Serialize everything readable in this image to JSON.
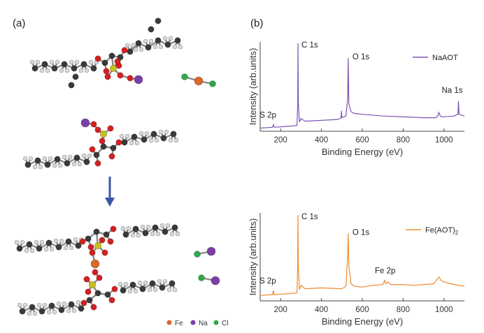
{
  "panels": {
    "a": "(a)",
    "b": "(b)"
  },
  "element_legend": [
    {
      "label": "Fe",
      "color": "#d9692a"
    },
    {
      "label": "Na",
      "color": "#7b3fa8"
    },
    {
      "label": "Cl",
      "color": "#2fa84a"
    }
  ],
  "atom_colors": {
    "C": "#3a3a3a",
    "H": "#d8d8d8",
    "O": "#d42020",
    "S": "#c8c020",
    "Fe": "#d9692a",
    "Na": "#7b3fa8",
    "Cl": "#2fa84a"
  },
  "arrow_color": "#3a55a8",
  "chart_data": [
    {
      "type": "line",
      "xlabel": "Binding Energy (eV)",
      "ylabel": "Intensity (arb.units)",
      "xlim": [
        100,
        1100
      ],
      "ylim": [
        0,
        1
      ],
      "xticks": [
        200,
        400,
        600,
        800,
        1000
      ],
      "grid": false,
      "legend_position": "top-right",
      "series": [
        {
          "name": "NaAOT",
          "color": "#7b55b5",
          "points": [
            [
              100,
              0.02
            ],
            [
              160,
              0.03
            ],
            [
              165,
              0.06
            ],
            [
              168,
              0.03
            ],
            [
              230,
              0.04
            ],
            [
              280,
              0.05
            ],
            [
              284,
              0.3
            ],
            [
              285,
              1.0
            ],
            [
              287,
              0.3
            ],
            [
              292,
              0.09
            ],
            [
              300,
              0.13
            ],
            [
              320,
              0.1
            ],
            [
              400,
              0.11
            ],
            [
              480,
              0.12
            ],
            [
              496,
              0.14
            ],
            [
              498,
              0.22
            ],
            [
              500,
              0.14
            ],
            [
              520,
              0.16
            ],
            [
              528,
              0.35
            ],
            [
              531,
              0.83
            ],
            [
              534,
              0.3
            ],
            [
              545,
              0.21
            ],
            [
              560,
              0.19
            ],
            [
              600,
              0.18
            ],
            [
              700,
              0.16
            ],
            [
              800,
              0.15
            ],
            [
              900,
              0.14
            ],
            [
              960,
              0.14
            ],
            [
              970,
              0.16
            ],
            [
              975,
              0.2
            ],
            [
              982,
              0.16
            ],
            [
              990,
              0.15
            ],
            [
              1050,
              0.16
            ],
            [
              1068,
              0.18
            ],
            [
              1071,
              0.33
            ],
            [
              1074,
              0.18
            ],
            [
              1100,
              0.16
            ]
          ]
        }
      ],
      "annotations": [
        {
          "text": "S 2p",
          "x": 165,
          "y": 0.06
        },
        {
          "text": "C 1s",
          "x": 285,
          "y": 1.0
        },
        {
          "text": "O 1s",
          "x": 531,
          "y": 0.83
        },
        {
          "text": "Na 1s",
          "x": 1071,
          "y": 0.33
        }
      ]
    },
    {
      "type": "line",
      "xlabel": "Binding Energy (eV)",
      "ylabel": "Intensity (arb.units)",
      "xlim": [
        100,
        1100
      ],
      "ylim": [
        0,
        1
      ],
      "xticks": [
        200,
        400,
        600,
        800,
        1000
      ],
      "grid": false,
      "legend_position": "top-right",
      "series": [
        {
          "name": "Fe(AOT)",
          "name_sub": "2",
          "color": "#f08a2c",
          "points": [
            [
              100,
              0.04
            ],
            [
              160,
              0.05
            ],
            [
              164,
              0.1
            ],
            [
              168,
              0.05
            ],
            [
              230,
              0.06
            ],
            [
              280,
              0.07
            ],
            [
              284,
              0.4
            ],
            [
              285,
              1.0
            ],
            [
              287,
              0.4
            ],
            [
              292,
              0.11
            ],
            [
              300,
              0.16
            ],
            [
              320,
              0.12
            ],
            [
              400,
              0.13
            ],
            [
              500,
              0.12
            ],
            [
              520,
              0.15
            ],
            [
              528,
              0.5
            ],
            [
              531,
              0.78
            ],
            [
              534,
              0.4
            ],
            [
              545,
              0.18
            ],
            [
              560,
              0.15
            ],
            [
              600,
              0.14
            ],
            [
              650,
              0.16
            ],
            [
              700,
              0.17
            ],
            [
              710,
              0.22
            ],
            [
              714,
              0.18
            ],
            [
              725,
              0.2
            ],
            [
              740,
              0.17
            ],
            [
              800,
              0.17
            ],
            [
              850,
              0.16
            ],
            [
              900,
              0.17
            ],
            [
              950,
              0.18
            ],
            [
              965,
              0.23
            ],
            [
              975,
              0.26
            ],
            [
              985,
              0.22
            ],
            [
              1000,
              0.2
            ],
            [
              1050,
              0.17
            ],
            [
              1100,
              0.15
            ]
          ]
        }
      ],
      "annotations": [
        {
          "text": "S 2p",
          "x": 164,
          "y": 0.1
        },
        {
          "text": "C 1s",
          "x": 285,
          "y": 1.0
        },
        {
          "text": "O 1s",
          "x": 531,
          "y": 0.78
        },
        {
          "text": "Fe 2p",
          "x": 712,
          "y": 0.22
        }
      ]
    }
  ]
}
